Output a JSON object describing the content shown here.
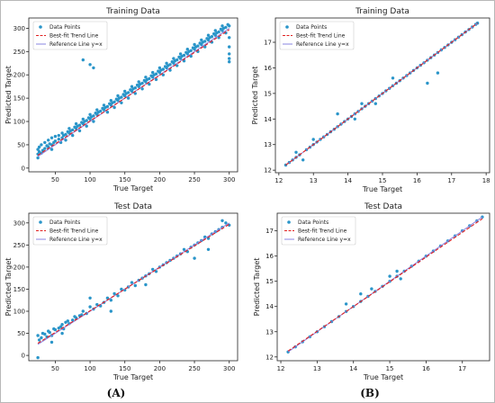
{
  "captions": [
    "(A)",
    "(B)"
  ],
  "chart_data": [
    {
      "type": "scatter",
      "title": "Training Data",
      "xlabel": "True Target",
      "ylabel": "Predicted Target",
      "xlim": [
        12,
        312
      ],
      "ylim": [
        -8,
        322
      ],
      "xticks": [
        50,
        100,
        150,
        200,
        250,
        300
      ],
      "yticks": [
        0,
        50,
        100,
        150,
        200,
        250,
        300
      ],
      "legend_position": "top-left",
      "legend": [
        "Data Points",
        "Best-fit Trend Line",
        "Reference Line y=x"
      ],
      "trend": {
        "slope": 0.98,
        "intercept": 3
      },
      "reference": {
        "slope": 1,
        "intercept": 0
      },
      "series": [
        {
          "name": "Data Points",
          "x": [
            25,
            25,
            25,
            27,
            27,
            30,
            30,
            32,
            35,
            35,
            38,
            40,
            40,
            42,
            45,
            45,
            45,
            48,
            50,
            50,
            55,
            55,
            58,
            60,
            60,
            62,
            65,
            65,
            68,
            70,
            70,
            72,
            75,
            75,
            78,
            80,
            80,
            82,
            85,
            85,
            88,
            90,
            90,
            92,
            95,
            95,
            98,
            100,
            100,
            102,
            105,
            105,
            108,
            110,
            110,
            112,
            115,
            118,
            120,
            120,
            122,
            125,
            125,
            128,
            130,
            130,
            132,
            135,
            135,
            138,
            140,
            140,
            142,
            145,
            145,
            148,
            150,
            150,
            152,
            155,
            155,
            158,
            160,
            160,
            162,
            165,
            165,
            168,
            170,
            170,
            172,
            175,
            175,
            178,
            180,
            180,
            182,
            185,
            185,
            188,
            190,
            190,
            192,
            195,
            195,
            198,
            200,
            200,
            202,
            205,
            205,
            208,
            210,
            210,
            212,
            215,
            215,
            218,
            220,
            220,
            222,
            225,
            225,
            228,
            230,
            230,
            232,
            235,
            235,
            238,
            240,
            240,
            242,
            245,
            245,
            248,
            250,
            250,
            252,
            255,
            255,
            258,
            260,
            260,
            262,
            265,
            265,
            268,
            270,
            270,
            272,
            275,
            275,
            278,
            280,
            280,
            282,
            285,
            285,
            288,
            290,
            290,
            292,
            295,
            295,
            298,
            300,
            300,
            300,
            300,
            300,
            300,
            90,
            100,
            105
          ],
          "y": [
            40,
            22,
            30,
            35,
            45,
            32,
            50,
            38,
            42,
            55,
            48,
            45,
            60,
            52,
            50,
            65,
            40,
            55,
            58,
            68,
            62,
            70,
            55,
            65,
            75,
            70,
            72,
            60,
            78,
            75,
            85,
            80,
            82,
            70,
            88,
            85,
            95,
            90,
            92,
            80,
            98,
            95,
            105,
            100,
            102,
            90,
            108,
            105,
            115,
            110,
            112,
            100,
            118,
            115,
            125,
            120,
            122,
            128,
            125,
            135,
            130,
            132,
            120,
            138,
            135,
            145,
            140,
            142,
            130,
            148,
            145,
            155,
            150,
            152,
            140,
            158,
            155,
            165,
            160,
            162,
            150,
            168,
            165,
            175,
            170,
            172,
            160,
            178,
            175,
            185,
            180,
            182,
            170,
            188,
            185,
            195,
            190,
            192,
            180,
            198,
            195,
            205,
            200,
            202,
            190,
            208,
            205,
            215,
            210,
            212,
            200,
            218,
            215,
            225,
            220,
            222,
            210,
            228,
            225,
            235,
            230,
            232,
            220,
            238,
            235,
            245,
            240,
            242,
            230,
            248,
            245,
            255,
            250,
            252,
            240,
            258,
            255,
            265,
            260,
            262,
            250,
            268,
            265,
            275,
            270,
            272,
            260,
            278,
            275,
            285,
            280,
            282,
            270,
            288,
            285,
            295,
            290,
            292,
            280,
            298,
            295,
            305,
            300,
            302,
            290,
            308,
            305,
            280,
            260,
            245,
            235,
            228,
            232,
            222,
            215
          ]
        }
      ]
    },
    {
      "type": "scatter",
      "title": "Training Data",
      "xlabel": "True Target",
      "ylabel": "Predicted Target",
      "xlim": [
        11.9,
        18.1
      ],
      "ylim": [
        11.9,
        17.95
      ],
      "xticks": [
        12,
        13,
        14,
        15,
        16,
        17,
        18
      ],
      "yticks": [
        12,
        13,
        14,
        15,
        16,
        17
      ],
      "legend_position": "top-left",
      "legend": [
        "Data Points",
        "Best-fit Trend Line",
        "Reference Line y=x"
      ],
      "trend": {
        "slope": 1,
        "intercept": 0
      },
      "reference": {
        "slope": 1,
        "intercept": 0
      },
      "series": [
        {
          "name": "Data Points",
          "x": [
            12.2,
            12.3,
            12.4,
            12.5,
            12.6,
            12.8,
            12.9,
            13.0,
            13.1,
            13.2,
            13.3,
            13.4,
            13.5,
            13.6,
            13.7,
            13.8,
            13.9,
            14.0,
            14.1,
            14.2,
            14.3,
            14.4,
            14.5,
            14.6,
            14.7,
            14.8,
            14.9,
            15.0,
            15.1,
            15.2,
            15.3,
            15.4,
            15.5,
            15.6,
            15.7,
            15.8,
            15.9,
            16.0,
            16.1,
            16.2,
            16.3,
            16.4,
            16.5,
            16.6,
            16.7,
            16.8,
            16.9,
            17.0,
            17.1,
            17.2,
            17.3,
            17.4,
            17.5,
            17.6,
            17.7,
            17.75,
            12.7,
            13.0,
            14.2,
            14.4,
            14.8,
            15.3,
            16.3,
            16.6,
            12.5,
            13.7
          ],
          "y": [
            12.2,
            12.3,
            12.4,
            12.5,
            12.6,
            12.8,
            12.9,
            13.0,
            13.1,
            13.2,
            13.3,
            13.4,
            13.5,
            13.6,
            13.7,
            13.8,
            13.9,
            14.0,
            14.1,
            14.2,
            14.3,
            14.4,
            14.5,
            14.6,
            14.7,
            14.8,
            14.9,
            15.0,
            15.1,
            15.2,
            15.3,
            15.4,
            15.5,
            15.6,
            15.7,
            15.8,
            15.9,
            16.0,
            16.1,
            16.2,
            16.3,
            16.4,
            16.5,
            16.6,
            16.7,
            16.8,
            16.9,
            17.0,
            17.1,
            17.2,
            17.3,
            17.4,
            17.5,
            17.6,
            17.7,
            17.75,
            12.4,
            13.2,
            14.0,
            14.6,
            14.6,
            15.6,
            15.4,
            15.8,
            12.7,
            14.2
          ]
        }
      ]
    },
    {
      "type": "scatter",
      "title": "Test Data",
      "xlabel": "True Target",
      "ylabel": "Predicted Target",
      "xlim": [
        12,
        312
      ],
      "ylim": [
        -12,
        322
      ],
      "xticks": [
        50,
        100,
        150,
        200,
        250,
        300
      ],
      "yticks": [
        0,
        50,
        100,
        150,
        200,
        250,
        300
      ],
      "legend_position": "top-left",
      "legend": [
        "Data Points",
        "Best-fit Trend Line",
        "Reference Line y=x"
      ],
      "trend": {
        "slope": 0.98,
        "intercept": 3
      },
      "reference": {
        "slope": 1,
        "intercept": 0
      },
      "series": [
        {
          "name": "Data Points",
          "x": [
            25,
            27,
            30,
            32,
            35,
            38,
            40,
            42,
            45,
            48,
            50,
            55,
            58,
            60,
            62,
            65,
            68,
            70,
            75,
            78,
            80,
            85,
            88,
            90,
            95,
            100,
            105,
            110,
            115,
            120,
            125,
            130,
            135,
            140,
            145,
            150,
            155,
            160,
            165,
            170,
            175,
            180,
            185,
            190,
            195,
            200,
            205,
            210,
            215,
            220,
            225,
            230,
            235,
            240,
            245,
            250,
            255,
            260,
            265,
            270,
            275,
            280,
            285,
            290,
            295,
            300,
            25,
            45,
            60,
            100,
            130,
            180,
            250,
            270,
            290
          ],
          "y": [
            45,
            35,
            40,
            50,
            48,
            42,
            55,
            52,
            45,
            60,
            58,
            62,
            65,
            70,
            60,
            75,
            78,
            72,
            80,
            88,
            85,
            90,
            92,
            100,
            95,
            110,
            105,
            115,
            112,
            120,
            130,
            125,
            140,
            135,
            150,
            148,
            155,
            165,
            158,
            170,
            175,
            180,
            185,
            195,
            190,
            200,
            205,
            210,
            215,
            220,
            225,
            230,
            240,
            235,
            245,
            250,
            255,
            260,
            268,
            265,
            275,
            280,
            285,
            290,
            300,
            295,
            -5,
            30,
            50,
            130,
            100,
            160,
            220,
            240,
            305
          ]
        }
      ]
    },
    {
      "type": "scatter",
      "title": "Test Data",
      "xlabel": "True Target",
      "ylabel": "Predicted Target",
      "xlim": [
        11.9,
        17.75
      ],
      "ylim": [
        11.85,
        17.7
      ],
      "xticks": [
        12,
        13,
        14,
        15,
        16,
        17
      ],
      "yticks": [
        12,
        13,
        14,
        15,
        16,
        17
      ],
      "legend_position": "top-left",
      "legend": [
        "Data Points",
        "Best-fit Trend Line",
        "Reference Line y=x"
      ],
      "trend": {
        "slope": 0.98,
        "intercept": 0.28
      },
      "reference": {
        "slope": 1,
        "intercept": 0
      },
      "series": [
        {
          "name": "Data Points",
          "x": [
            12.2,
            12.4,
            12.6,
            12.8,
            13.0,
            13.2,
            13.4,
            13.6,
            13.8,
            14.0,
            14.2,
            14.4,
            14.6,
            14.8,
            15.0,
            15.2,
            15.4,
            15.6,
            15.8,
            16.0,
            16.2,
            16.4,
            16.6,
            16.8,
            17.0,
            17.2,
            17.4,
            17.55,
            13.8,
            14.2,
            15.2,
            15.3,
            14.5,
            15.0
          ],
          "y": [
            12.2,
            12.4,
            12.6,
            12.8,
            13.0,
            13.2,
            13.4,
            13.6,
            13.8,
            14.0,
            14.2,
            14.4,
            14.6,
            14.8,
            15.0,
            15.2,
            15.4,
            15.6,
            15.8,
            16.0,
            16.2,
            16.4,
            16.6,
            16.8,
            17.0,
            17.2,
            17.4,
            17.55,
            14.1,
            14.5,
            15.4,
            15.1,
            14.7,
            15.2
          ]
        }
      ]
    }
  ]
}
